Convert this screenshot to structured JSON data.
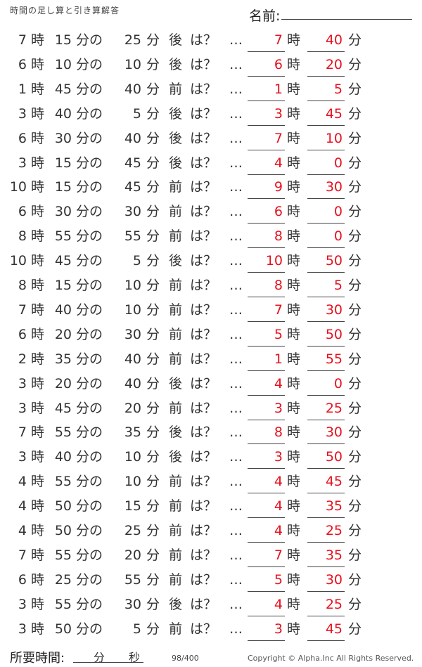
{
  "header": {
    "title": "時間の足し算と引き算解答",
    "name_label": "名前:"
  },
  "units": {
    "hour": "時",
    "minute": "分",
    "of": "分の",
    "question": "は？",
    "ellipsis": "…"
  },
  "problems": [
    {
      "h": "7",
      "m": "15",
      "d": "25",
      "dir": "後",
      "ah": "7",
      "am": "40"
    },
    {
      "h": "6",
      "m": "10",
      "d": "10",
      "dir": "後",
      "ah": "6",
      "am": "20"
    },
    {
      "h": "1",
      "m": "45",
      "d": "40",
      "dir": "前",
      "ah": "1",
      "am": "5"
    },
    {
      "h": "3",
      "m": "40",
      "d": "5",
      "dir": "後",
      "ah": "3",
      "am": "45"
    },
    {
      "h": "6",
      "m": "30",
      "d": "40",
      "dir": "後",
      "ah": "7",
      "am": "10"
    },
    {
      "h": "3",
      "m": "15",
      "d": "45",
      "dir": "後",
      "ah": "4",
      "am": "0"
    },
    {
      "h": "10",
      "m": "15",
      "d": "45",
      "dir": "前",
      "ah": "9",
      "am": "30"
    },
    {
      "h": "6",
      "m": "30",
      "d": "30",
      "dir": "前",
      "ah": "6",
      "am": "0"
    },
    {
      "h": "8",
      "m": "55",
      "d": "55",
      "dir": "前",
      "ah": "8",
      "am": "0"
    },
    {
      "h": "10",
      "m": "45",
      "d": "5",
      "dir": "後",
      "ah": "10",
      "am": "50"
    },
    {
      "h": "8",
      "m": "15",
      "d": "10",
      "dir": "前",
      "ah": "8",
      "am": "5"
    },
    {
      "h": "7",
      "m": "40",
      "d": "10",
      "dir": "前",
      "ah": "7",
      "am": "30"
    },
    {
      "h": "6",
      "m": "20",
      "d": "30",
      "dir": "前",
      "ah": "5",
      "am": "50"
    },
    {
      "h": "2",
      "m": "35",
      "d": "40",
      "dir": "前",
      "ah": "1",
      "am": "55"
    },
    {
      "h": "3",
      "m": "20",
      "d": "40",
      "dir": "後",
      "ah": "4",
      "am": "0"
    },
    {
      "h": "3",
      "m": "45",
      "d": "20",
      "dir": "前",
      "ah": "3",
      "am": "25"
    },
    {
      "h": "7",
      "m": "55",
      "d": "35",
      "dir": "後",
      "ah": "8",
      "am": "30"
    },
    {
      "h": "3",
      "m": "40",
      "d": "10",
      "dir": "後",
      "ah": "3",
      "am": "50"
    },
    {
      "h": "4",
      "m": "55",
      "d": "10",
      "dir": "前",
      "ah": "4",
      "am": "45"
    },
    {
      "h": "4",
      "m": "50",
      "d": "15",
      "dir": "前",
      "ah": "4",
      "am": "35"
    },
    {
      "h": "4",
      "m": "50",
      "d": "25",
      "dir": "前",
      "ah": "4",
      "am": "25"
    },
    {
      "h": "7",
      "m": "55",
      "d": "20",
      "dir": "前",
      "ah": "7",
      "am": "35"
    },
    {
      "h": "6",
      "m": "25",
      "d": "55",
      "dir": "前",
      "ah": "5",
      "am": "30"
    },
    {
      "h": "3",
      "m": "55",
      "d": "30",
      "dir": "後",
      "ah": "4",
      "am": "25"
    },
    {
      "h": "3",
      "m": "50",
      "d": "5",
      "dir": "前",
      "ah": "3",
      "am": "45"
    }
  ],
  "footer": {
    "time_label": "所要時間:",
    "minutes": "分",
    "seconds": "秒",
    "page": "98/400",
    "copyright": "Copyright ©  Alpha.Inc All Rights Reserved."
  },
  "colors": {
    "answer": "#e8101e"
  }
}
